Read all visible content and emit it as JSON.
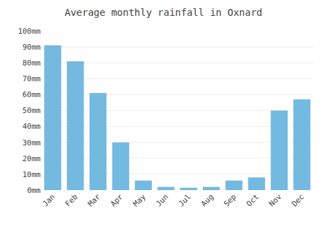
{
  "chart_data": {
    "type": "bar",
    "title": "Average monthly rainfall in Oxnard",
    "categories": [
      "Jan",
      "Feb",
      "Mar",
      "Apr",
      "May",
      "Jun",
      "Jul",
      "Aug",
      "Sep",
      "Oct",
      "Nov",
      "Dec"
    ],
    "values": [
      91,
      81,
      61,
      30,
      6,
      2,
      1.5,
      2,
      6,
      8,
      50,
      57
    ],
    "color": "#74b9e0",
    "ylim": [
      0,
      100
    ],
    "yticks": [
      {
        "value": 0,
        "label": "0mm"
      },
      {
        "value": 10,
        "label": "10mm"
      },
      {
        "value": 20,
        "label": "20mm"
      },
      {
        "value": 30,
        "label": "30mm"
      },
      {
        "value": 40,
        "label": "40mm"
      },
      {
        "value": 50,
        "label": "50mm"
      },
      {
        "value": 60,
        "label": "60mm"
      },
      {
        "value": 70,
        "label": "70mm"
      },
      {
        "value": 80,
        "label": "80mm"
      },
      {
        "value": 90,
        "label": "90mm"
      },
      {
        "value": 100,
        "label": "100mm"
      }
    ],
    "grid": true
  }
}
